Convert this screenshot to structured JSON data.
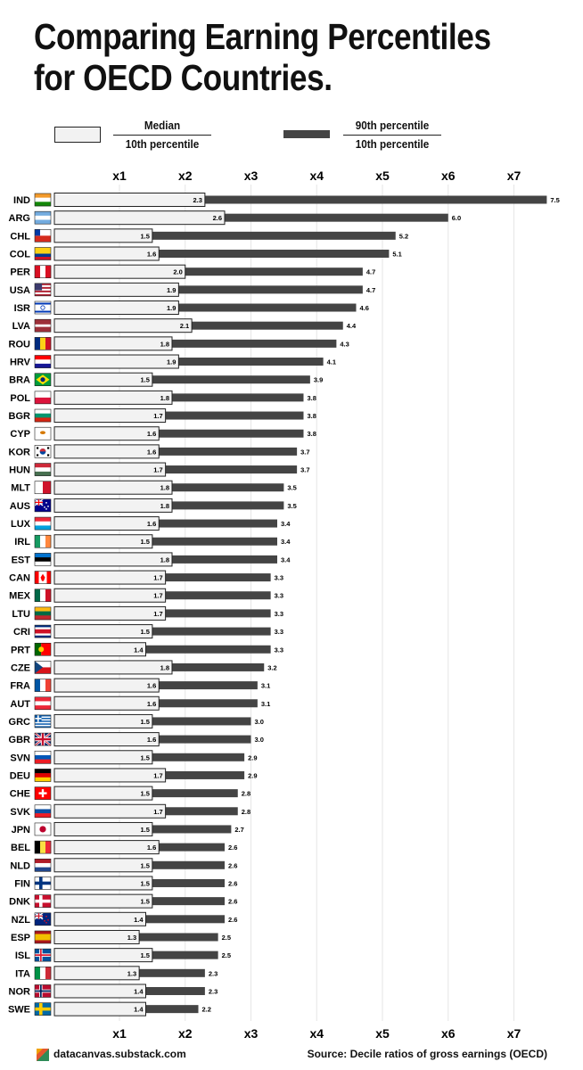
{
  "title_line1": "Comparing Earning Percentiles",
  "title_line2": "for OECD Countries.",
  "legend": {
    "left_numerator": "Median",
    "left_denominator": "10th percentile",
    "right_numerator": "90th percentile",
    "right_denominator": "10th percentile"
  },
  "footer": {
    "site": "datacanvas.substack.com",
    "source": "Source: Decile ratios of gross earnings (OECD)"
  },
  "colors": {
    "median_bar": "#f2f2f2",
    "p90_bar": "#444444",
    "gridline": "#e6e6e6"
  },
  "chart_data": {
    "type": "bar",
    "orientation": "horizontal",
    "xlim": [
      1,
      7.7
    ],
    "tick_labels": [
      "x1",
      "x2",
      "x3",
      "x4",
      "x5",
      "x6",
      "x7"
    ],
    "tick_values": [
      1,
      2,
      3,
      4,
      5,
      6,
      7
    ],
    "grid": true,
    "categories": [
      "IND",
      "ARG",
      "CHL",
      "COL",
      "PER",
      "USA",
      "ISR",
      "LVA",
      "ROU",
      "HRV",
      "BRA",
      "POL",
      "BGR",
      "CYP",
      "KOR",
      "HUN",
      "MLT",
      "AUS",
      "LUX",
      "IRL",
      "EST",
      "CAN",
      "MEX",
      "LTU",
      "CRI",
      "PRT",
      "CZE",
      "FRA",
      "AUT",
      "GRC",
      "GBR",
      "SVN",
      "DEU",
      "CHE",
      "SVK",
      "JPN",
      "BEL",
      "NLD",
      "FIN",
      "DNK",
      "NZL",
      "ESP",
      "ISL",
      "ITA",
      "NOR",
      "SWE"
    ],
    "series": [
      {
        "name": "Median / 10th percentile",
        "values": [
          2.3,
          2.6,
          1.5,
          1.6,
          2.0,
          1.9,
          1.9,
          2.1,
          1.8,
          1.9,
          1.5,
          1.8,
          1.7,
          1.6,
          1.6,
          1.7,
          1.8,
          1.8,
          1.6,
          1.5,
          1.8,
          1.7,
          1.7,
          1.7,
          1.5,
          1.4,
          1.8,
          1.6,
          1.6,
          1.5,
          1.6,
          1.5,
          1.7,
          1.5,
          1.7,
          1.5,
          1.6,
          1.5,
          1.5,
          1.5,
          1.4,
          1.3,
          1.5,
          1.3,
          1.4,
          1.4
        ]
      },
      {
        "name": "90th percentile / 10th percentile",
        "values": [
          7.5,
          6.0,
          5.2,
          5.1,
          4.7,
          4.7,
          4.6,
          4.4,
          4.3,
          4.1,
          3.9,
          3.8,
          3.8,
          3.8,
          3.7,
          3.7,
          3.5,
          3.5,
          3.4,
          3.4,
          3.4,
          3.3,
          3.3,
          3.3,
          3.3,
          3.3,
          3.2,
          3.1,
          3.1,
          3.0,
          3.0,
          2.9,
          2.9,
          2.8,
          2.8,
          2.7,
          2.6,
          2.6,
          2.6,
          2.6,
          2.6,
          2.5,
          2.5,
          2.3,
          2.3,
          2.2
        ]
      }
    ],
    "flags": {
      "IND": {
        "type": "h3",
        "c": [
          "#f39a2b",
          "#ffffff",
          "#138808"
        ]
      },
      "ARG": {
        "type": "h3",
        "c": [
          "#74acdf",
          "#ffffff",
          "#74acdf"
        ]
      },
      "CHL": {
        "type": "chile",
        "c": [
          "#0039a6",
          "#ffffff",
          "#d52b1e"
        ]
      },
      "COL": {
        "type": "col",
        "c": [
          "#fcd116",
          "#003893",
          "#ce1126"
        ]
      },
      "PER": {
        "type": "v3",
        "c": [
          "#d91023",
          "#ffffff",
          "#d91023"
        ]
      },
      "USA": {
        "type": "usa",
        "c": [
          "#b22234",
          "#ffffff",
          "#3c3b6e"
        ]
      },
      "ISR": {
        "type": "isr",
        "c": [
          "#ffffff",
          "#0038b8"
        ]
      },
      "LVA": {
        "type": "lva",
        "c": [
          "#9e3039",
          "#ffffff"
        ]
      },
      "ROU": {
        "type": "v3",
        "c": [
          "#002b7f",
          "#fcd116",
          "#ce1126"
        ]
      },
      "HRV": {
        "type": "h3",
        "c": [
          "#ff0000",
          "#ffffff",
          "#171796"
        ]
      },
      "BRA": {
        "type": "bra",
        "c": [
          "#009c3b",
          "#ffdf00",
          "#002776"
        ]
      },
      "POL": {
        "type": "h2",
        "c": [
          "#ffffff",
          "#dc143c"
        ]
      },
      "BGR": {
        "type": "h3",
        "c": [
          "#ffffff",
          "#00966e",
          "#d62612"
        ]
      },
      "CYP": {
        "type": "cyp",
        "c": [
          "#ffffff",
          "#d57800"
        ]
      },
      "KOR": {
        "type": "kor",
        "c": [
          "#ffffff",
          "#cd2e3a",
          "#0047a0",
          "#000000"
        ]
      },
      "HUN": {
        "type": "h3",
        "c": [
          "#ce2939",
          "#ffffff",
          "#477050"
        ]
      },
      "MLT": {
        "type": "v2",
        "c": [
          "#ffffff",
          "#cf142b"
        ]
      },
      "AUS": {
        "type": "canton",
        "c": [
          "#00008b",
          "#ffffff",
          "#ff0000"
        ]
      },
      "LUX": {
        "type": "h3",
        "c": [
          "#ed2939",
          "#ffffff",
          "#00a1de"
        ]
      },
      "IRL": {
        "type": "v3",
        "c": [
          "#169b62",
          "#ffffff",
          "#ff883e"
        ]
      },
      "EST": {
        "type": "h3",
        "c": [
          "#0072ce",
          "#000000",
          "#ffffff"
        ]
      },
      "CAN": {
        "type": "can",
        "c": [
          "#ff0000",
          "#ffffff"
        ]
      },
      "MEX": {
        "type": "v3",
        "c": [
          "#006847",
          "#ffffff",
          "#ce1126"
        ]
      },
      "LTU": {
        "type": "h3",
        "c": [
          "#fdb913",
          "#006a44",
          "#c1272d"
        ]
      },
      "CRI": {
        "type": "cri",
        "c": [
          "#002b7f",
          "#ffffff",
          "#ce1126"
        ]
      },
      "PRT": {
        "type": "prt",
        "c": [
          "#006600",
          "#ff0000",
          "#ffcc00"
        ]
      },
      "CZE": {
        "type": "cze",
        "c": [
          "#ffffff",
          "#d7141a",
          "#11457e"
        ]
      },
      "FRA": {
        "type": "v3",
        "c": [
          "#0055a4",
          "#ffffff",
          "#ef4135"
        ]
      },
      "AUT": {
        "type": "h3",
        "c": [
          "#ed2939",
          "#ffffff",
          "#ed2939"
        ]
      },
      "GRC": {
        "type": "grc",
        "c": [
          "#0d5eaf",
          "#ffffff"
        ]
      },
      "GBR": {
        "type": "gbr",
        "c": [
          "#012169",
          "#ffffff",
          "#c8102e"
        ]
      },
      "SVN": {
        "type": "h3",
        "c": [
          "#ffffff",
          "#0057b8",
          "#ed1c24"
        ]
      },
      "DEU": {
        "type": "h3",
        "c": [
          "#000000",
          "#dd0000",
          "#ffce00"
        ]
      },
      "CHE": {
        "type": "che",
        "c": [
          "#ff0000",
          "#ffffff"
        ]
      },
      "SVK": {
        "type": "h3",
        "c": [
          "#ffffff",
          "#0b4ea2",
          "#ee1c25"
        ]
      },
      "JPN": {
        "type": "jpn",
        "c": [
          "#ffffff",
          "#bc002d"
        ]
      },
      "BEL": {
        "type": "v3",
        "c": [
          "#000000",
          "#fae042",
          "#ed2939"
        ]
      },
      "NLD": {
        "type": "h3",
        "c": [
          "#ae1c28",
          "#ffffff",
          "#21468b"
        ]
      },
      "FIN": {
        "type": "nordic",
        "c": [
          "#ffffff",
          "#003580",
          "#003580"
        ]
      },
      "DNK": {
        "type": "nordic",
        "c": [
          "#c8102e",
          "#ffffff",
          "#ffffff"
        ]
      },
      "NZL": {
        "type": "canton",
        "c": [
          "#00247d",
          "#ffffff",
          "#cc142b"
        ]
      },
      "ESP": {
        "type": "esp",
        "c": [
          "#aa151b",
          "#f1bf00"
        ]
      },
      "ISL": {
        "type": "nordic",
        "c": [
          "#02529c",
          "#ffffff",
          "#dc1e35"
        ]
      },
      "ITA": {
        "type": "v3",
        "c": [
          "#009246",
          "#ffffff",
          "#ce2b37"
        ]
      },
      "NOR": {
        "type": "nordic",
        "c": [
          "#ba0c2f",
          "#ffffff",
          "#00205b"
        ]
      },
      "SWE": {
        "type": "nordic",
        "c": [
          "#006aa7",
          "#fecc00",
          "#fecc00"
        ]
      }
    }
  }
}
